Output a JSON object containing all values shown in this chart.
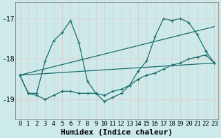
{
  "xlabel": "Humidex (Indice chaleur)",
  "bg_color": "#cceaea",
  "grid_color": "#e8c8c8",
  "line_color": "#1a6b6b",
  "xlim": [
    -0.5,
    23.5
  ],
  "ylim": [
    -19.5,
    -16.6
  ],
  "yticks": [
    -19,
    -18,
    -17
  ],
  "xticks": [
    0,
    1,
    2,
    3,
    4,
    5,
    6,
    7,
    8,
    9,
    10,
    11,
    12,
    13,
    14,
    15,
    16,
    17,
    18,
    19,
    20,
    21,
    22,
    23
  ],
  "series": [
    {
      "x": [
        0,
        1,
        2,
        3,
        4,
        5,
        6,
        7,
        8,
        9,
        10,
        11,
        12,
        13,
        14,
        15,
        16,
        17,
        18,
        19,
        20,
        21,
        22,
        23
      ],
      "y": [
        -18.4,
        -18.85,
        -18.85,
        -18.05,
        -17.55,
        -17.35,
        -17.05,
        -17.6,
        -18.55,
        -18.85,
        -19.05,
        -18.95,
        -18.85,
        -18.65,
        -18.3,
        -18.05,
        -17.45,
        -17.0,
        -17.05,
        -17.0,
        -17.1,
        -17.4,
        -17.8,
        -18.1
      ],
      "has_marker": true
    },
    {
      "x": [
        0,
        1,
        2,
        3,
        4,
        5,
        6,
        7,
        8,
        9,
        10,
        11,
        12,
        13,
        14,
        15,
        16,
        17,
        18,
        19,
        20,
        21,
        22,
        23
      ],
      "y": [
        -18.4,
        -18.85,
        -18.9,
        -19.0,
        -18.9,
        -18.8,
        -18.8,
        -18.85,
        -18.85,
        -18.85,
        -18.9,
        -18.8,
        -18.75,
        -18.65,
        -18.5,
        -18.4,
        -18.35,
        -18.25,
        -18.15,
        -18.1,
        -18.0,
        -17.95,
        -17.9,
        -18.1
      ],
      "has_marker": true
    },
    {
      "x": [
        0,
        23
      ],
      "y": [
        -18.4,
        -18.1
      ],
      "has_marker": false
    },
    {
      "x": [
        0,
        23
      ],
      "y": [
        -18.4,
        -17.2
      ],
      "has_marker": false
    }
  ],
  "font_size_xlabel": 8,
  "font_size_ticks": 6.5,
  "marker": "+"
}
